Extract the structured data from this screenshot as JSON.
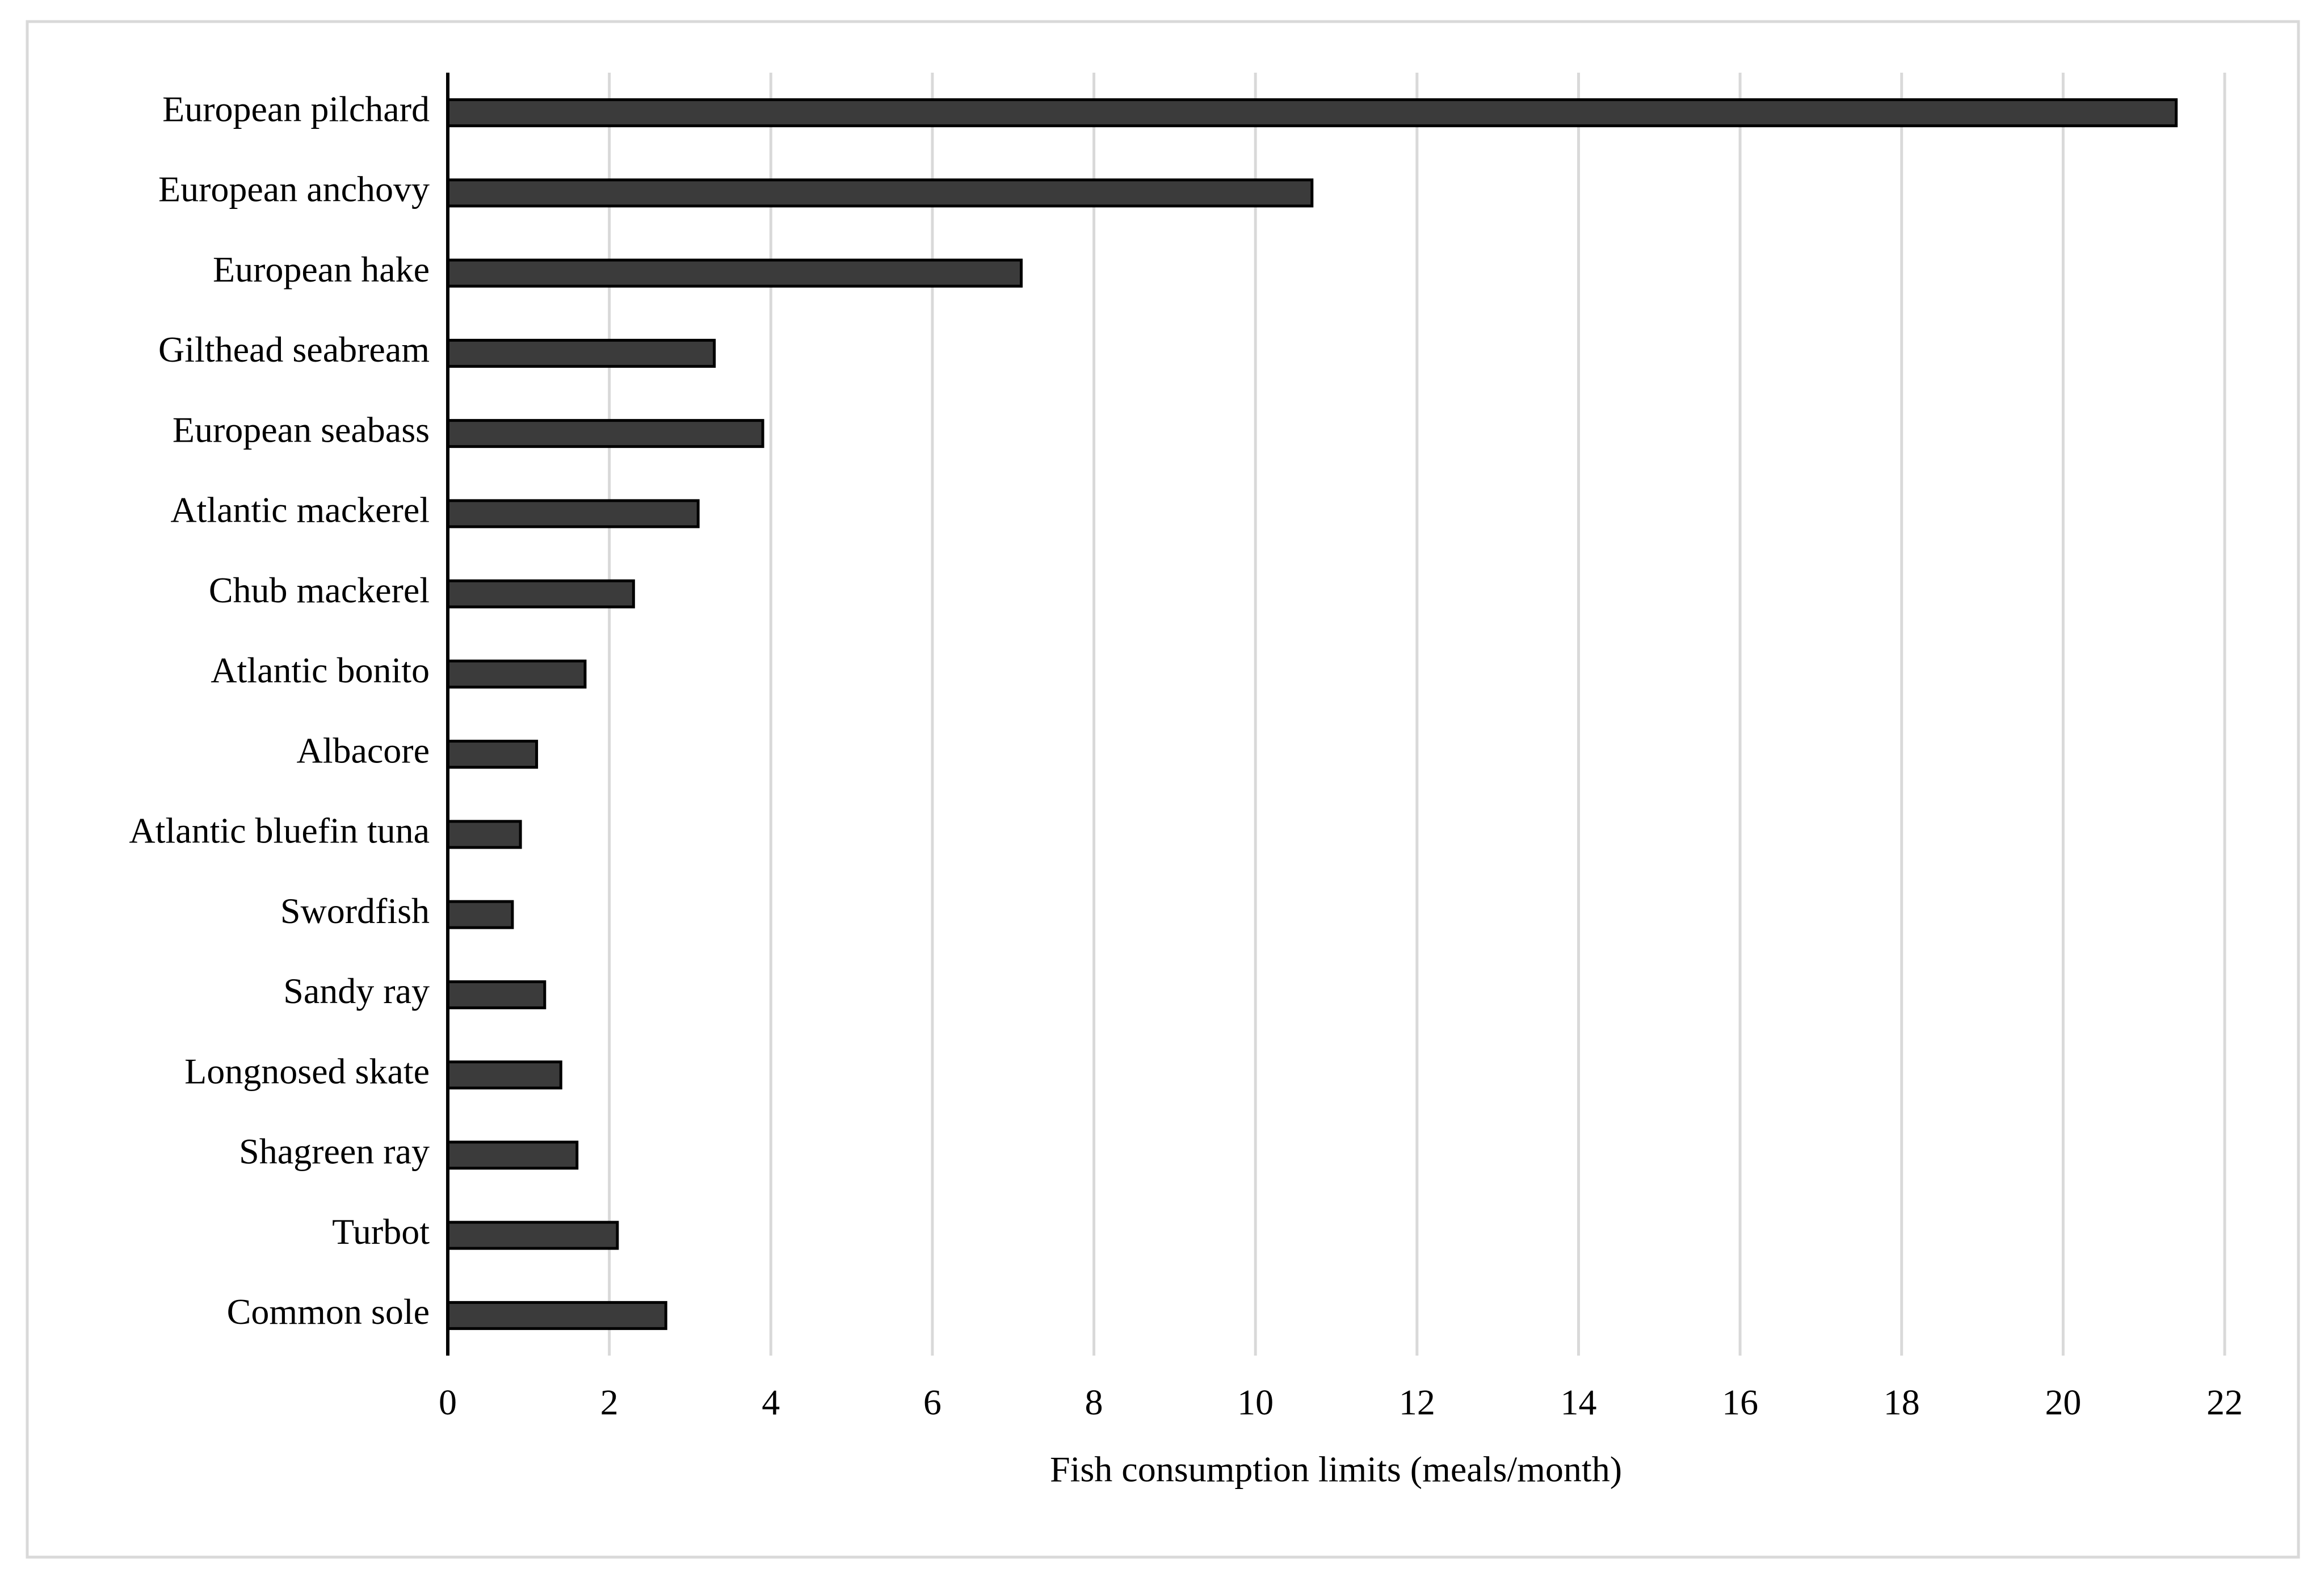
{
  "chart_data": {
    "type": "bar",
    "orientation": "horizontal",
    "xlabel": "Fish consumption limits (meals/month)",
    "categories": [
      "European pilchard",
      "European anchovy",
      "European hake",
      "Gilthead seabream",
      "European seabass",
      "Atlantic mackerel",
      "Chub mackerel",
      "Atlantic bonito",
      "Albacore",
      "Atlantic bluefin tuna",
      "Swordfish",
      "Sandy ray",
      "Longnosed skate",
      "Shagreen ray",
      "Turbot",
      "Common sole"
    ],
    "values": [
      21.4,
      10.7,
      7.1,
      3.3,
      3.9,
      3.1,
      2.3,
      1.7,
      1.1,
      0.9,
      0.8,
      1.2,
      1.4,
      1.6,
      2.1,
      2.7
    ],
    "color": "#3b3b3b",
    "xlim": [
      0,
      22
    ],
    "xticks": [
      0,
      2,
      4,
      6,
      8,
      10,
      12,
      14,
      16,
      18,
      20,
      22
    ],
    "grid": true
  }
}
